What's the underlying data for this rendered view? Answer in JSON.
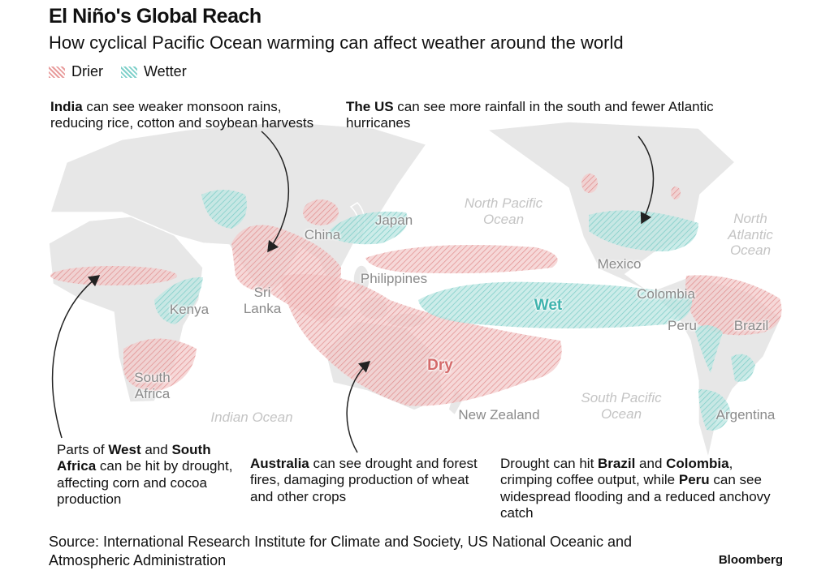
{
  "header": {
    "title": "El Niño's Global Reach",
    "subtitle": "How cyclical Pacific Ocean warming can affect weather around the world"
  },
  "legend": {
    "items": [
      {
        "label": "Drier",
        "color": "#e89c9c"
      },
      {
        "label": "Wetter",
        "color": "#7fd0ca"
      }
    ]
  },
  "map_labels": {
    "oceans": [
      "North Pacific Ocean",
      "North Atlantic Ocean",
      "South Pacific Ocean",
      "Indian Ocean"
    ],
    "places": [
      "Japan",
      "China",
      "Philippines",
      "Sri Lanka",
      "Kenya",
      "South Africa",
      "Mexico",
      "Colombia",
      "Peru",
      "Brazil",
      "Argentina",
      "New Zealand"
    ],
    "zones": [
      {
        "label": "Wet",
        "color": "#3fb3ad"
      },
      {
        "label": "Dry",
        "color": "#d46a6a"
      }
    ]
  },
  "annotations": [
    {
      "runs": [
        {
          "text": "India",
          "bold": true
        },
        {
          "text": " can see weaker monsoon rains, reducing rice, cotton and soybean harvests"
        }
      ]
    },
    {
      "runs": [
        {
          "text": "The US",
          "bold": true
        },
        {
          "text": " can see more rainfall in the south and fewer Atlantic hurricanes"
        }
      ]
    },
    {
      "runs": [
        {
          "text": "Parts of "
        },
        {
          "text": "West",
          "bold": true
        },
        {
          "text": " and "
        },
        {
          "text": "South Africa",
          "bold": true
        },
        {
          "text": " can be hit by drought, affecting corn and cocoa production"
        }
      ]
    },
    {
      "runs": [
        {
          "text": "Australia",
          "bold": true
        },
        {
          "text": " can see drought and forest fires, damaging production of wheat and other crops"
        }
      ]
    },
    {
      "runs": [
        {
          "text": "Drought can hit "
        },
        {
          "text": "Brazil",
          "bold": true
        },
        {
          "text": " and "
        },
        {
          "text": "Colombia",
          "bold": true
        },
        {
          "text": ", crimping coffee output, while "
        },
        {
          "text": "Peru",
          "bold": true
        },
        {
          "text": " can see widespread flooding and a reduced anchovy catch"
        }
      ]
    }
  ],
  "footer": {
    "source": "Source: International Research Institute for Climate and Society, US National Oceanic and Atmospheric Administration",
    "brand": "Bloomberg"
  }
}
